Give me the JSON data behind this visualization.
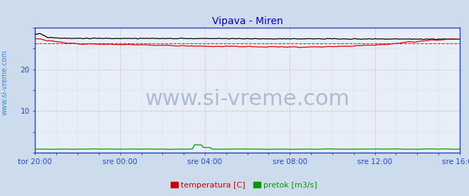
{
  "title": "Vipava - Miren",
  "title_color": "#0000cc",
  "title_fontsize": 10,
  "bg_color": "#ccdcec",
  "plot_bg_color": "#e8eef8",
  "x_labels": [
    "tor 20:00",
    "sre 00:00",
    "sre 04:00",
    "sre 08:00",
    "sre 12:00",
    "sre 16:00"
  ],
  "x_ticks_pos": [
    0.0,
    0.2,
    0.4,
    0.6,
    0.8,
    1.0
  ],
  "y_ticks": [
    10,
    20
  ],
  "ylim": [
    0,
    30
  ],
  "xlim": [
    0,
    1
  ],
  "grid_color": "#cc8888",
  "watermark": "www.si-vreme.com",
  "watermark_color": "#1a3a6a",
  "watermark_fontsize": 22,
  "ylabel_text": "www.si-vreme.com",
  "ylabel_color": "#4488cc",
  "ylabel_fontsize": 7,
  "temp_color": "#dd0000",
  "temp_avg_value": 26.2,
  "temp_avg_color": "#dd0000",
  "height_color": "#000000",
  "pretok_color": "#009900",
  "pretok_line_color": "#2222cc",
  "legend_temp_color": "#cc0000",
  "legend_pretok_color": "#009900",
  "legend_fontsize": 8,
  "border_color": "#2244cc",
  "tick_color": "#2244cc",
  "tick_fontsize": 7.5
}
